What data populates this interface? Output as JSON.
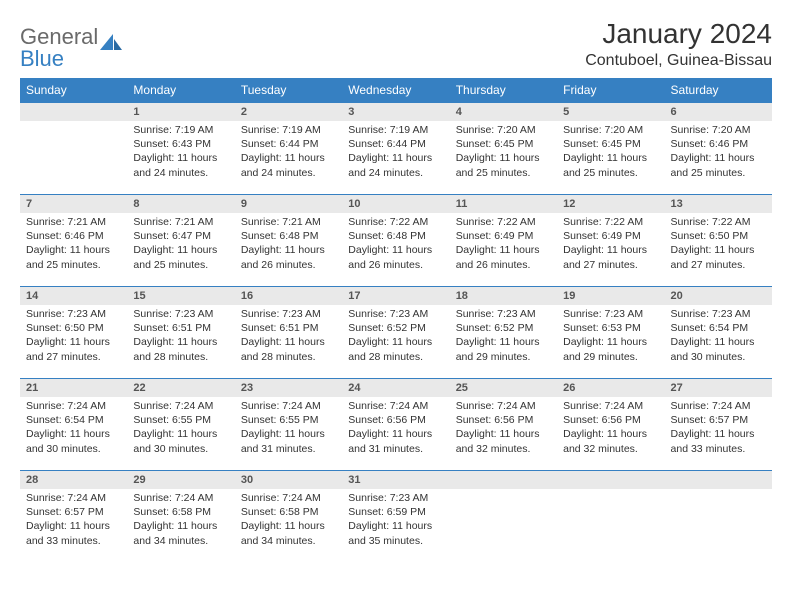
{
  "logo": {
    "word1": "General",
    "word2": "Blue"
  },
  "title": "January 2024",
  "location": "Contuboel, Guinea-Bissau",
  "colors": {
    "header_bg": "#3680c2",
    "header_text": "#ffffff",
    "daynum_bg": "#e9e9e9",
    "border": "#3680c2",
    "logo_gray": "#6a6a6a",
    "logo_blue": "#3680c2"
  },
  "day_headers": [
    "Sunday",
    "Monday",
    "Tuesday",
    "Wednesday",
    "Thursday",
    "Friday",
    "Saturday"
  ],
  "weeks": [
    [
      {
        "n": "",
        "sr": "",
        "ss": "",
        "dl": ""
      },
      {
        "n": "1",
        "sr": "Sunrise: 7:19 AM",
        "ss": "Sunset: 6:43 PM",
        "dl": "Daylight: 11 hours and 24 minutes."
      },
      {
        "n": "2",
        "sr": "Sunrise: 7:19 AM",
        "ss": "Sunset: 6:44 PM",
        "dl": "Daylight: 11 hours and 24 minutes."
      },
      {
        "n": "3",
        "sr": "Sunrise: 7:19 AM",
        "ss": "Sunset: 6:44 PM",
        "dl": "Daylight: 11 hours and 24 minutes."
      },
      {
        "n": "4",
        "sr": "Sunrise: 7:20 AM",
        "ss": "Sunset: 6:45 PM",
        "dl": "Daylight: 11 hours and 25 minutes."
      },
      {
        "n": "5",
        "sr": "Sunrise: 7:20 AM",
        "ss": "Sunset: 6:45 PM",
        "dl": "Daylight: 11 hours and 25 minutes."
      },
      {
        "n": "6",
        "sr": "Sunrise: 7:20 AM",
        "ss": "Sunset: 6:46 PM",
        "dl": "Daylight: 11 hours and 25 minutes."
      }
    ],
    [
      {
        "n": "7",
        "sr": "Sunrise: 7:21 AM",
        "ss": "Sunset: 6:46 PM",
        "dl": "Daylight: 11 hours and 25 minutes."
      },
      {
        "n": "8",
        "sr": "Sunrise: 7:21 AM",
        "ss": "Sunset: 6:47 PM",
        "dl": "Daylight: 11 hours and 25 minutes."
      },
      {
        "n": "9",
        "sr": "Sunrise: 7:21 AM",
        "ss": "Sunset: 6:48 PM",
        "dl": "Daylight: 11 hours and 26 minutes."
      },
      {
        "n": "10",
        "sr": "Sunrise: 7:22 AM",
        "ss": "Sunset: 6:48 PM",
        "dl": "Daylight: 11 hours and 26 minutes."
      },
      {
        "n": "11",
        "sr": "Sunrise: 7:22 AM",
        "ss": "Sunset: 6:49 PM",
        "dl": "Daylight: 11 hours and 26 minutes."
      },
      {
        "n": "12",
        "sr": "Sunrise: 7:22 AM",
        "ss": "Sunset: 6:49 PM",
        "dl": "Daylight: 11 hours and 27 minutes."
      },
      {
        "n": "13",
        "sr": "Sunrise: 7:22 AM",
        "ss": "Sunset: 6:50 PM",
        "dl": "Daylight: 11 hours and 27 minutes."
      }
    ],
    [
      {
        "n": "14",
        "sr": "Sunrise: 7:23 AM",
        "ss": "Sunset: 6:50 PM",
        "dl": "Daylight: 11 hours and 27 minutes."
      },
      {
        "n": "15",
        "sr": "Sunrise: 7:23 AM",
        "ss": "Sunset: 6:51 PM",
        "dl": "Daylight: 11 hours and 28 minutes."
      },
      {
        "n": "16",
        "sr": "Sunrise: 7:23 AM",
        "ss": "Sunset: 6:51 PM",
        "dl": "Daylight: 11 hours and 28 minutes."
      },
      {
        "n": "17",
        "sr": "Sunrise: 7:23 AM",
        "ss": "Sunset: 6:52 PM",
        "dl": "Daylight: 11 hours and 28 minutes."
      },
      {
        "n": "18",
        "sr": "Sunrise: 7:23 AM",
        "ss": "Sunset: 6:52 PM",
        "dl": "Daylight: 11 hours and 29 minutes."
      },
      {
        "n": "19",
        "sr": "Sunrise: 7:23 AM",
        "ss": "Sunset: 6:53 PM",
        "dl": "Daylight: 11 hours and 29 minutes."
      },
      {
        "n": "20",
        "sr": "Sunrise: 7:23 AM",
        "ss": "Sunset: 6:54 PM",
        "dl": "Daylight: 11 hours and 30 minutes."
      }
    ],
    [
      {
        "n": "21",
        "sr": "Sunrise: 7:24 AM",
        "ss": "Sunset: 6:54 PM",
        "dl": "Daylight: 11 hours and 30 minutes."
      },
      {
        "n": "22",
        "sr": "Sunrise: 7:24 AM",
        "ss": "Sunset: 6:55 PM",
        "dl": "Daylight: 11 hours and 30 minutes."
      },
      {
        "n": "23",
        "sr": "Sunrise: 7:24 AM",
        "ss": "Sunset: 6:55 PM",
        "dl": "Daylight: 11 hours and 31 minutes."
      },
      {
        "n": "24",
        "sr": "Sunrise: 7:24 AM",
        "ss": "Sunset: 6:56 PM",
        "dl": "Daylight: 11 hours and 31 minutes."
      },
      {
        "n": "25",
        "sr": "Sunrise: 7:24 AM",
        "ss": "Sunset: 6:56 PM",
        "dl": "Daylight: 11 hours and 32 minutes."
      },
      {
        "n": "26",
        "sr": "Sunrise: 7:24 AM",
        "ss": "Sunset: 6:56 PM",
        "dl": "Daylight: 11 hours and 32 minutes."
      },
      {
        "n": "27",
        "sr": "Sunrise: 7:24 AM",
        "ss": "Sunset: 6:57 PM",
        "dl": "Daylight: 11 hours and 33 minutes."
      }
    ],
    [
      {
        "n": "28",
        "sr": "Sunrise: 7:24 AM",
        "ss": "Sunset: 6:57 PM",
        "dl": "Daylight: 11 hours and 33 minutes."
      },
      {
        "n": "29",
        "sr": "Sunrise: 7:24 AM",
        "ss": "Sunset: 6:58 PM",
        "dl": "Daylight: 11 hours and 34 minutes."
      },
      {
        "n": "30",
        "sr": "Sunrise: 7:24 AM",
        "ss": "Sunset: 6:58 PM",
        "dl": "Daylight: 11 hours and 34 minutes."
      },
      {
        "n": "31",
        "sr": "Sunrise: 7:23 AM",
        "ss": "Sunset: 6:59 PM",
        "dl": "Daylight: 11 hours and 35 minutes."
      },
      {
        "n": "",
        "sr": "",
        "ss": "",
        "dl": ""
      },
      {
        "n": "",
        "sr": "",
        "ss": "",
        "dl": ""
      },
      {
        "n": "",
        "sr": "",
        "ss": "",
        "dl": ""
      }
    ]
  ]
}
